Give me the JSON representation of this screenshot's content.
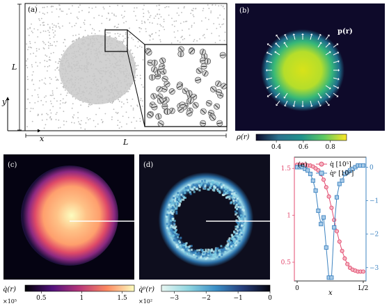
{
  "panels": {
    "a": {
      "label": "(a)",
      "axis_y": "y",
      "axis_x": "x",
      "side_label_vertical": "L",
      "side_label_horizontal": "L"
    },
    "b": {
      "label": "(b)",
      "vector_label": "p(r)",
      "colorbar_label": "ρ(r)",
      "colorbar_ticks": [
        "0.4",
        "0.6",
        "0.8"
      ],
      "colorbar_range": [
        0.25,
        0.92
      ],
      "colors": {
        "background": "#0e0a2a",
        "low": "#22a884",
        "high": "#fde725"
      }
    },
    "c": {
      "label": "(c)",
      "colorbar_label": "q̇(r)",
      "colorbar_multiplier": "×10⁵",
      "colorbar_ticks": [
        "0.5",
        "1",
        "1.5"
      ],
      "colorbar_range": [
        0.3,
        1.65
      ]
    },
    "d": {
      "label": "(d)",
      "colorbar_label": "q̇ᵖ(r)",
      "colorbar_multiplier": "×10²",
      "colorbar_ticks": [
        "−3",
        "−2",
        "−1",
        "0"
      ],
      "colorbar_range": [
        -3.4,
        0
      ]
    }
  },
  "chart_data": {
    "type": "line",
    "panel_label": "(e)",
    "xlabel": "x",
    "x_tick_labels": [
      "0",
      "L/2"
    ],
    "x": [
      0.0,
      0.04,
      0.08,
      0.12,
      0.16,
      0.2,
      0.24,
      0.28,
      0.32,
      0.36,
      0.4,
      0.44,
      0.48,
      0.52,
      0.56,
      0.6,
      0.64,
      0.68,
      0.72,
      0.76,
      0.8,
      0.84,
      0.88,
      0.92,
      0.96,
      1.0
    ],
    "xlim": [
      0,
      1
    ],
    "left_axis": {
      "ylim": [
        0.3,
        1.62
      ],
      "ticks": [
        "0.5",
        "1",
        "1.5"
      ],
      "tick_values": [
        0.5,
        1.0,
        1.5
      ],
      "color": "#e34a6f"
    },
    "right_axis": {
      "ylim": [
        -3.4,
        0.3
      ],
      "ticks": [
        "0",
        "−1",
        "−2",
        "−3"
      ],
      "tick_values": [
        0,
        -1,
        -2,
        -3
      ],
      "color": "#3d83c0"
    },
    "series": [
      {
        "name": "q̇ [10⁵]",
        "axis": "left",
        "marker": "circle",
        "color": "#e34a6f",
        "values": [
          1.54,
          1.54,
          1.54,
          1.54,
          1.53,
          1.53,
          1.52,
          1.5,
          1.48,
          1.44,
          1.38,
          1.3,
          1.2,
          1.08,
          0.95,
          0.83,
          0.72,
          0.62,
          0.54,
          0.48,
          0.44,
          0.42,
          0.41,
          0.4,
          0.4,
          0.4
        ]
      },
      {
        "name": "q̇ᵖ [10²]",
        "axis": "right",
        "marker": "square",
        "color": "#3d83c0",
        "values": [
          0.0,
          0.0,
          0.0,
          -0.05,
          -0.1,
          -0.2,
          -0.4,
          -0.7,
          -1.3,
          -1.7,
          -1.5,
          -2.4,
          -3.3,
          -3.3,
          -1.8,
          -0.9,
          -0.5,
          -0.4,
          -0.2,
          -0.15,
          -0.1,
          -0.05,
          0.0,
          0.05,
          0.05,
          0.05
        ]
      }
    ]
  }
}
